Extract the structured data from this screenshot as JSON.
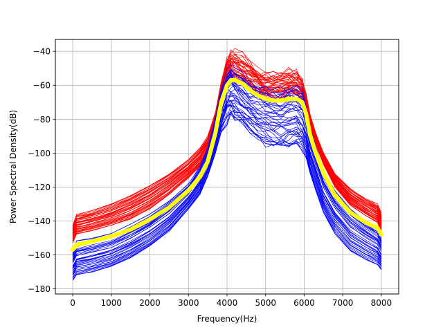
{
  "chart_data": {
    "type": "line",
    "title": "",
    "xlabel": "Frequency(Hz)",
    "ylabel": "Power Spectral Density(dB)",
    "xlim": [
      -450,
      8450
    ],
    "ylim": [
      -183,
      -33
    ],
    "xticks": [
      0,
      1000,
      2000,
      3000,
      4000,
      5000,
      6000,
      7000,
      8000
    ],
    "yticks": [
      -180,
      -160,
      -140,
      -120,
      -100,
      -80,
      -60,
      -40
    ],
    "xtick_labels": [
      "0",
      "1000",
      "2000",
      "3000",
      "4000",
      "5000",
      "6000",
      "7000",
      "8000"
    ],
    "ytick_labels": [
      "−180",
      "−160",
      "−140",
      "−120",
      "−100",
      "−80",
      "−60",
      "−40"
    ],
    "grid": true,
    "legend": "none",
    "series_groups": [
      {
        "color": "#ff0000",
        "line_count": 40,
        "x": [
          0,
          100,
          500,
          1000,
          1500,
          2000,
          2500,
          3000,
          3300,
          3500,
          3700,
          3850,
          4000,
          4100,
          4200,
          4400,
          4600,
          4800,
          5000,
          5200,
          5400,
          5600,
          5800,
          5950,
          6050,
          6150,
          6300,
          6500,
          6800,
          7200,
          7600,
          7900,
          8000
        ],
        "upper": [
          -143,
          -136,
          -134,
          -130,
          -125,
          -119,
          -112,
          -104,
          -97,
          -90,
          -76,
          -58,
          -44,
          -40,
          -41,
          -43,
          -47,
          -52,
          -54,
          -53,
          -52,
          -52,
          -53,
          -57,
          -65,
          -77,
          -88,
          -100,
          -112,
          -121,
          -127,
          -130,
          -135
        ],
        "lower": [
          -153,
          -148,
          -146,
          -143,
          -139,
          -133,
          -125,
          -115,
          -108,
          -100,
          -84,
          -70,
          -60,
          -56,
          -57,
          -59,
          -62,
          -65,
          -67,
          -68,
          -68,
          -66,
          -65,
          -68,
          -75,
          -86,
          -95,
          -107,
          -120,
          -131,
          -137,
          -141,
          -147
        ]
      },
      {
        "color": "#0000ff",
        "line_count": 40,
        "x": [
          0,
          100,
          500,
          1000,
          1500,
          2000,
          2500,
          3000,
          3300,
          3500,
          3700,
          3850,
          4000,
          4100,
          4200,
          4400,
          4600,
          4800,
          5000,
          5200,
          5400,
          5600,
          5800,
          5950,
          6050,
          6150,
          6300,
          6500,
          6800,
          7200,
          7600,
          7900,
          8000
        ],
        "upper": [
          -158,
          -152,
          -150,
          -147,
          -142,
          -136,
          -128,
          -118,
          -108,
          -97,
          -79,
          -62,
          -53,
          -50,
          -52,
          -55,
          -58,
          -60,
          -62,
          -63,
          -63,
          -62,
          -61,
          -64,
          -73,
          -85,
          -96,
          -110,
          -122,
          -133,
          -140,
          -145,
          -150
        ],
        "lower": [
          -175,
          -172,
          -170,
          -167,
          -162,
          -155,
          -146,
          -133,
          -124,
          -114,
          -100,
          -88,
          -81,
          -78,
          -80,
          -84,
          -88,
          -92,
          -95,
          -97,
          -98,
          -97,
          -96,
          -98,
          -103,
          -112,
          -122,
          -135,
          -148,
          -158,
          -163,
          -166,
          -169
        ]
      }
    ],
    "series": [
      {
        "color": "#ffff00",
        "x": [
          0,
          100,
          500,
          1000,
          1500,
          2000,
          2500,
          3000,
          3300,
          3500,
          3700,
          3850,
          4000,
          4100,
          4200,
          4400,
          4600,
          4800,
          5000,
          5200,
          5400,
          5600,
          5800,
          5950,
          6050,
          6150,
          6300,
          6500,
          6800,
          7200,
          7600,
          7900,
          8000
        ],
        "values": [
          -157,
          -154,
          -152,
          -149,
          -145,
          -139,
          -132,
          -122,
          -114,
          -105,
          -88,
          -70,
          -60,
          -57,
          -57,
          -59,
          -63,
          -66,
          -68,
          -69,
          -69,
          -68,
          -68,
          -70,
          -77,
          -89,
          -100,
          -112,
          -125,
          -135,
          -141,
          -144,
          -148
        ]
      }
    ]
  }
}
